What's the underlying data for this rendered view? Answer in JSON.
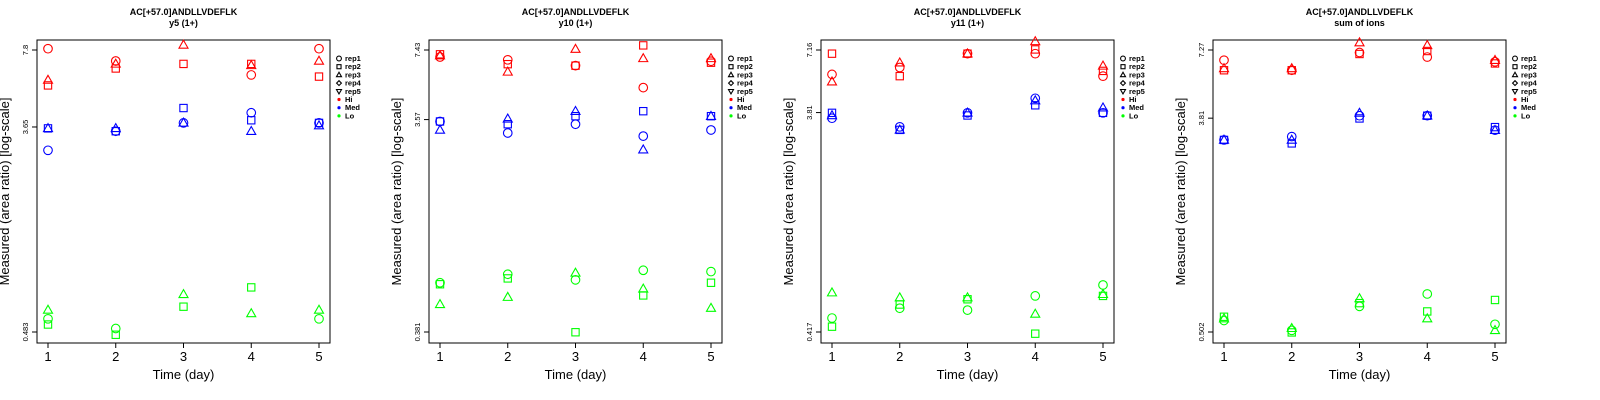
{
  "chart_data": [
    {
      "type": "scatter",
      "title": "AC[+57.0]ANDLLVDEFLK",
      "subtitle": "y5 (1+)",
      "xlabel": "Time (day)",
      "ylabel": "Measured (area ratio) [log-scale]",
      "x_ticks": [
        "1",
        "2",
        "3",
        "4",
        "5"
      ],
      "y_ticks": [
        "0.483",
        "3.65",
        "7.8"
      ],
      "y_scale": "log",
      "legend_position": "right",
      "series": [
        {
          "level": "Hi",
          "rep": "rep1",
          "values": [
            7.9,
            7.0,
            null,
            6.1,
            7.9
          ]
        },
        {
          "level": "Hi",
          "rep": "rep2",
          "values": [
            5.5,
            6.5,
            6.8,
            6.8,
            6.0
          ]
        },
        {
          "level": "Hi",
          "rep": "rep3",
          "values": [
            5.8,
            6.8,
            8.2,
            6.7,
            7.0
          ]
        },
        {
          "level": "Med",
          "rep": "rep1",
          "values": [
            2.9,
            3.5,
            3.8,
            4.2,
            3.8
          ]
        },
        {
          "level": "Med",
          "rep": "rep2",
          "values": [
            3.6,
            3.5,
            4.4,
            3.9,
            3.8
          ]
        },
        {
          "level": "Med",
          "rep": "rep3",
          "values": [
            3.6,
            3.6,
            3.8,
            3.5,
            3.7
          ]
        },
        {
          "level": "Lo",
          "rep": "rep1",
          "values": [
            0.55,
            0.5,
            null,
            null,
            0.55
          ]
        },
        {
          "level": "Lo",
          "rep": "rep2",
          "values": [
            0.52,
            0.47,
            0.62,
            0.75,
            null
          ]
        },
        {
          "level": "Lo",
          "rep": "rep3",
          "values": [
            0.6,
            null,
            0.7,
            0.58,
            0.6
          ]
        }
      ]
    },
    {
      "type": "scatter",
      "title": "AC[+57.0]ANDLLVDEFLK",
      "subtitle": "y10 (1+)",
      "xlabel": "Time (day)",
      "ylabel": "Measured (area ratio) [log-scale]",
      "x_ticks": [
        "1",
        "2",
        "3",
        "4",
        "5"
      ],
      "y_ticks": [
        "0.381",
        "3.57",
        "7.43"
      ],
      "y_scale": "log",
      "legend_position": "right",
      "series": [
        {
          "level": "Hi",
          "rep": "rep1",
          "values": [
            6.9,
            6.7,
            6.3,
            5.0,
            6.6
          ]
        },
        {
          "level": "Hi",
          "rep": "rep2",
          "values": [
            7.1,
            6.4,
            6.3,
            7.8,
            6.5
          ]
        },
        {
          "level": "Hi",
          "rep": "rep3",
          "values": [
            7.0,
            5.9,
            7.5,
            6.8,
            6.8
          ]
        },
        {
          "level": "Med",
          "rep": "rep1",
          "values": [
            3.5,
            3.1,
            3.4,
            3.0,
            3.2
          ]
        },
        {
          "level": "Med",
          "rep": "rep2",
          "values": [
            3.5,
            3.4,
            3.7,
            3.9,
            3.7
          ]
        },
        {
          "level": "Med",
          "rep": "rep3",
          "values": [
            3.2,
            3.6,
            3.9,
            2.6,
            3.7
          ]
        },
        {
          "level": "Lo",
          "rep": "rep1",
          "values": [
            0.64,
            0.7,
            0.66,
            0.73,
            0.72
          ]
        },
        {
          "level": "Lo",
          "rep": "rep2",
          "values": [
            0.63,
            0.67,
            0.38,
            0.56,
            0.64
          ]
        },
        {
          "level": "Lo",
          "rep": "rep3",
          "values": [
            0.51,
            0.55,
            0.71,
            0.6,
            0.49
          ]
        }
      ]
    },
    {
      "type": "scatter",
      "title": "AC[+57.0]ANDLLVDEFLK",
      "subtitle": "y11 (1+)",
      "xlabel": "Time (day)",
      "ylabel": "Measured (area ratio) [log-scale]",
      "x_ticks": [
        "1",
        "2",
        "3",
        "4",
        "5"
      ],
      "y_ticks": [
        "0.417",
        "3.81",
        "7.16"
      ],
      "y_scale": "log",
      "legend_position": "right",
      "series": [
        {
          "level": "Hi",
          "rep": "rep1",
          "values": [
            5.6,
            6.0,
            6.9,
            6.9,
            5.5
          ]
        },
        {
          "level": "Hi",
          "rep": "rep2",
          "values": [
            6.9,
            5.5,
            6.9,
            7.2,
            5.8
          ]
        },
        {
          "level": "Hi",
          "rep": "rep3",
          "values": [
            5.2,
            6.3,
            6.9,
            7.8,
            6.1
          ]
        },
        {
          "level": "Med",
          "rep": "rep1",
          "values": [
            3.6,
            3.3,
            3.8,
            4.4,
            3.8
          ]
        },
        {
          "level": "Med",
          "rep": "rep2",
          "values": [
            3.8,
            3.2,
            3.7,
            4.1,
            3.8
          ]
        },
        {
          "level": "Med",
          "rep": "rep3",
          "values": [
            3.7,
            3.2,
            3.8,
            4.3,
            4.0
          ]
        },
        {
          "level": "Lo",
          "rep": "rep1",
          "values": [
            0.48,
            0.53,
            0.52,
            0.6,
            0.67
          ]
        },
        {
          "level": "Lo",
          "rep": "rep2",
          "values": [
            0.44,
            0.55,
            0.58,
            0.41,
            0.6
          ]
        },
        {
          "level": "Lo",
          "rep": "rep3",
          "values": [
            0.62,
            0.59,
            0.59,
            0.5,
            0.61
          ]
        }
      ]
    },
    {
      "type": "scatter",
      "title": "AC[+57.0]ANDLLVDEFLK",
      "subtitle": "sum of ions",
      "xlabel": "Time (day)",
      "ylabel": "Measured (area ratio) [log-scale]",
      "x_ticks": [
        "1",
        "2",
        "3",
        "4",
        "5"
      ],
      "y_ticks": [
        "0.502",
        "3.81",
        "7.27"
      ],
      "y_scale": "log",
      "legend_position": "right",
      "series": [
        {
          "level": "Hi",
          "rep": "rep1",
          "values": [
            6.6,
            6.0,
            7.1,
            6.8,
            6.5
          ]
        },
        {
          "level": "Hi",
          "rep": "rep2",
          "values": [
            6.0,
            6.0,
            7.0,
            7.2,
            6.4
          ]
        },
        {
          "level": "Hi",
          "rep": "rep3",
          "values": [
            6.1,
            6.1,
            7.8,
            7.6,
            6.6
          ]
        },
        {
          "level": "Med",
          "rep": "rep1",
          "values": [
            3.1,
            3.2,
            3.9,
            3.9,
            3.4
          ]
        },
        {
          "level": "Med",
          "rep": "rep2",
          "values": [
            3.1,
            3.0,
            3.8,
            3.9,
            3.5
          ]
        },
        {
          "level": "Med",
          "rep": "rep3",
          "values": [
            3.1,
            3.1,
            4.0,
            3.9,
            3.4
          ]
        },
        {
          "level": "Lo",
          "rep": "rep1",
          "values": [
            0.56,
            0.51,
            0.64,
            0.72,
            0.54
          ]
        },
        {
          "level": "Lo",
          "rep": "rep2",
          "values": [
            0.58,
            0.5,
            0.66,
            0.61,
            0.68
          ]
        },
        {
          "level": "Lo",
          "rep": "rep3",
          "values": [
            0.57,
            0.52,
            0.69,
            0.57,
            0.51
          ]
        }
      ]
    }
  ],
  "legend": {
    "entries": [
      {
        "label": "rep1",
        "symbol": "circle",
        "color": "#000000"
      },
      {
        "label": "rep2",
        "symbol": "square",
        "color": "#000000"
      },
      {
        "label": "rep3",
        "symbol": "triangle",
        "color": "#000000"
      },
      {
        "label": "rep4",
        "symbol": "diamond",
        "color": "#000000"
      },
      {
        "label": "rep5",
        "symbol": "triangle-down",
        "color": "#000000"
      },
      {
        "label": "Hi",
        "symbol": "dot",
        "color": "#ff0000"
      },
      {
        "label": "Med",
        "symbol": "dot",
        "color": "#0000ff"
      },
      {
        "label": "Lo",
        "symbol": "dot",
        "color": "#00ff00"
      }
    ]
  },
  "colors": {
    "Hi": "#ff0000",
    "Med": "#0000ff",
    "Lo": "#00ff00"
  }
}
